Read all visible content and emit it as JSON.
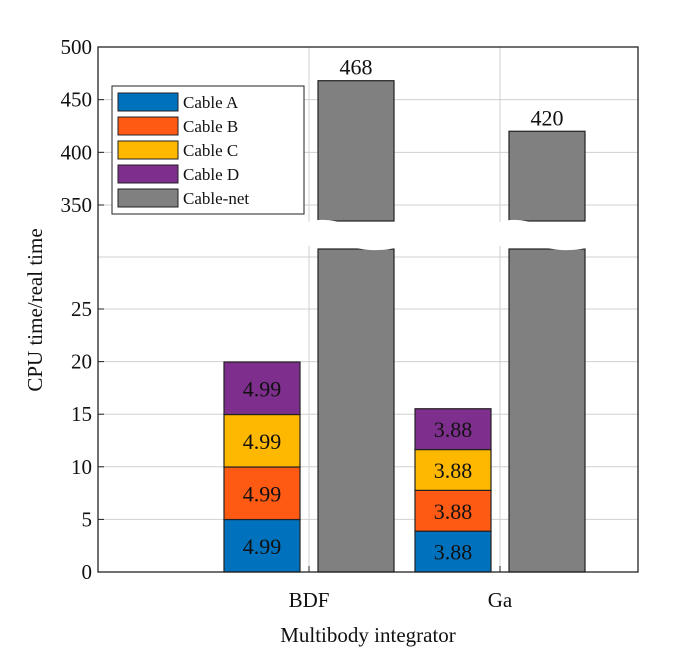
{
  "chart_data": {
    "type": "bar",
    "stacked": true,
    "broken_y_axis": true,
    "title": "",
    "xlabel": "Multibody integrator",
    "ylabel": "CPU time/real time",
    "categories": [
      "BDF",
      "Ga"
    ],
    "series": [
      {
        "name": "Cable A",
        "color": "#0072BD",
        "values": [
          4.99,
          3.88
        ]
      },
      {
        "name": "Cable B",
        "color": "#FF5A14",
        "values": [
          4.99,
          3.88
        ]
      },
      {
        "name": "Cable C",
        "color": "#FFB800",
        "values": [
          4.99,
          3.88
        ]
      },
      {
        "name": "Cable D",
        "color": "#7E2F8E",
        "values": [
          4.99,
          3.88
        ]
      },
      {
        "name": "Cable-net",
        "color": "#808080",
        "values": [
          468,
          420
        ]
      }
    ],
    "y_ticks_lower": [
      "0",
      "5",
      "10",
      "15",
      "20",
      "25"
    ],
    "y_ticks_upper": [
      "350",
      "400",
      "450",
      "500"
    ],
    "ylim_lower": [
      0,
      30
    ],
    "ylim_upper": [
      325,
      500
    ],
    "legend_position": "top-left",
    "grid": true
  }
}
